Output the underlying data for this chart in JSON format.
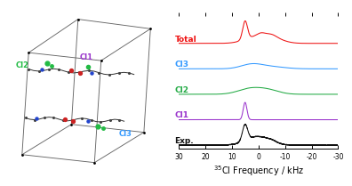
{
  "xlabel": "$^{35}$Cl Frequency / kHz",
  "xlim_left": 30,
  "xlim_right": -30,
  "xticks": [
    30,
    20,
    10,
    0,
    -10,
    -20,
    -30
  ],
  "xticklabels": [
    "30",
    "20",
    "10",
    "0",
    "-10",
    "-20",
    "-30"
  ],
  "series_labels": [
    "Total",
    "Cl3",
    "Cl2",
    "Cl1",
    "Exp."
  ],
  "series_colors": [
    "#ee1111",
    "#3399ff",
    "#22aa44",
    "#9933cc",
    "#111111"
  ],
  "offsets": [
    4.0,
    3.0,
    2.0,
    1.0,
    0.0
  ],
  "peak_kHz": 5.0,
  "background_color": "#ffffff",
  "box_color": "#666666",
  "label_fontsize": 6.5,
  "tick_fontsize": 5.5,
  "axis_label_fontsize": 7
}
